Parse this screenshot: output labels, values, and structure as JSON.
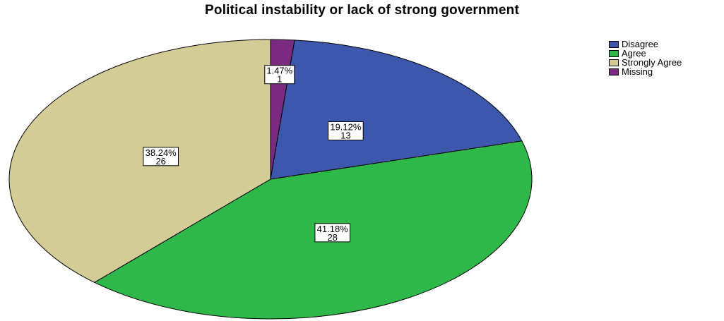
{
  "chart_data": {
    "type": "pie",
    "title": "Political instability or lack of strong government",
    "slices": [
      {
        "name": "Missing",
        "percent_label": "1.47%",
        "count_label": "1",
        "value": 1,
        "color": "#7b2a82"
      },
      {
        "name": "Disagree",
        "percent_label": "19.12%",
        "count_label": "13",
        "value": 13,
        "color": "#3d57ad"
      },
      {
        "name": "Agree",
        "percent_label": "41.18%",
        "count_label": "28",
        "value": 28,
        "color": "#2eb84a"
      },
      {
        "name": "Strongly Agree",
        "percent_label": "38.24%",
        "count_label": "26",
        "value": 26,
        "color": "#d4cc96"
      }
    ],
    "legend": {
      "placement": "top-right",
      "items": [
        "Disagree",
        "Agree",
        "Strongly Agree",
        "Missing"
      ],
      "colors": [
        "#3d57ad",
        "#2eb84a",
        "#d4cc96",
        "#7b2a82"
      ]
    }
  }
}
